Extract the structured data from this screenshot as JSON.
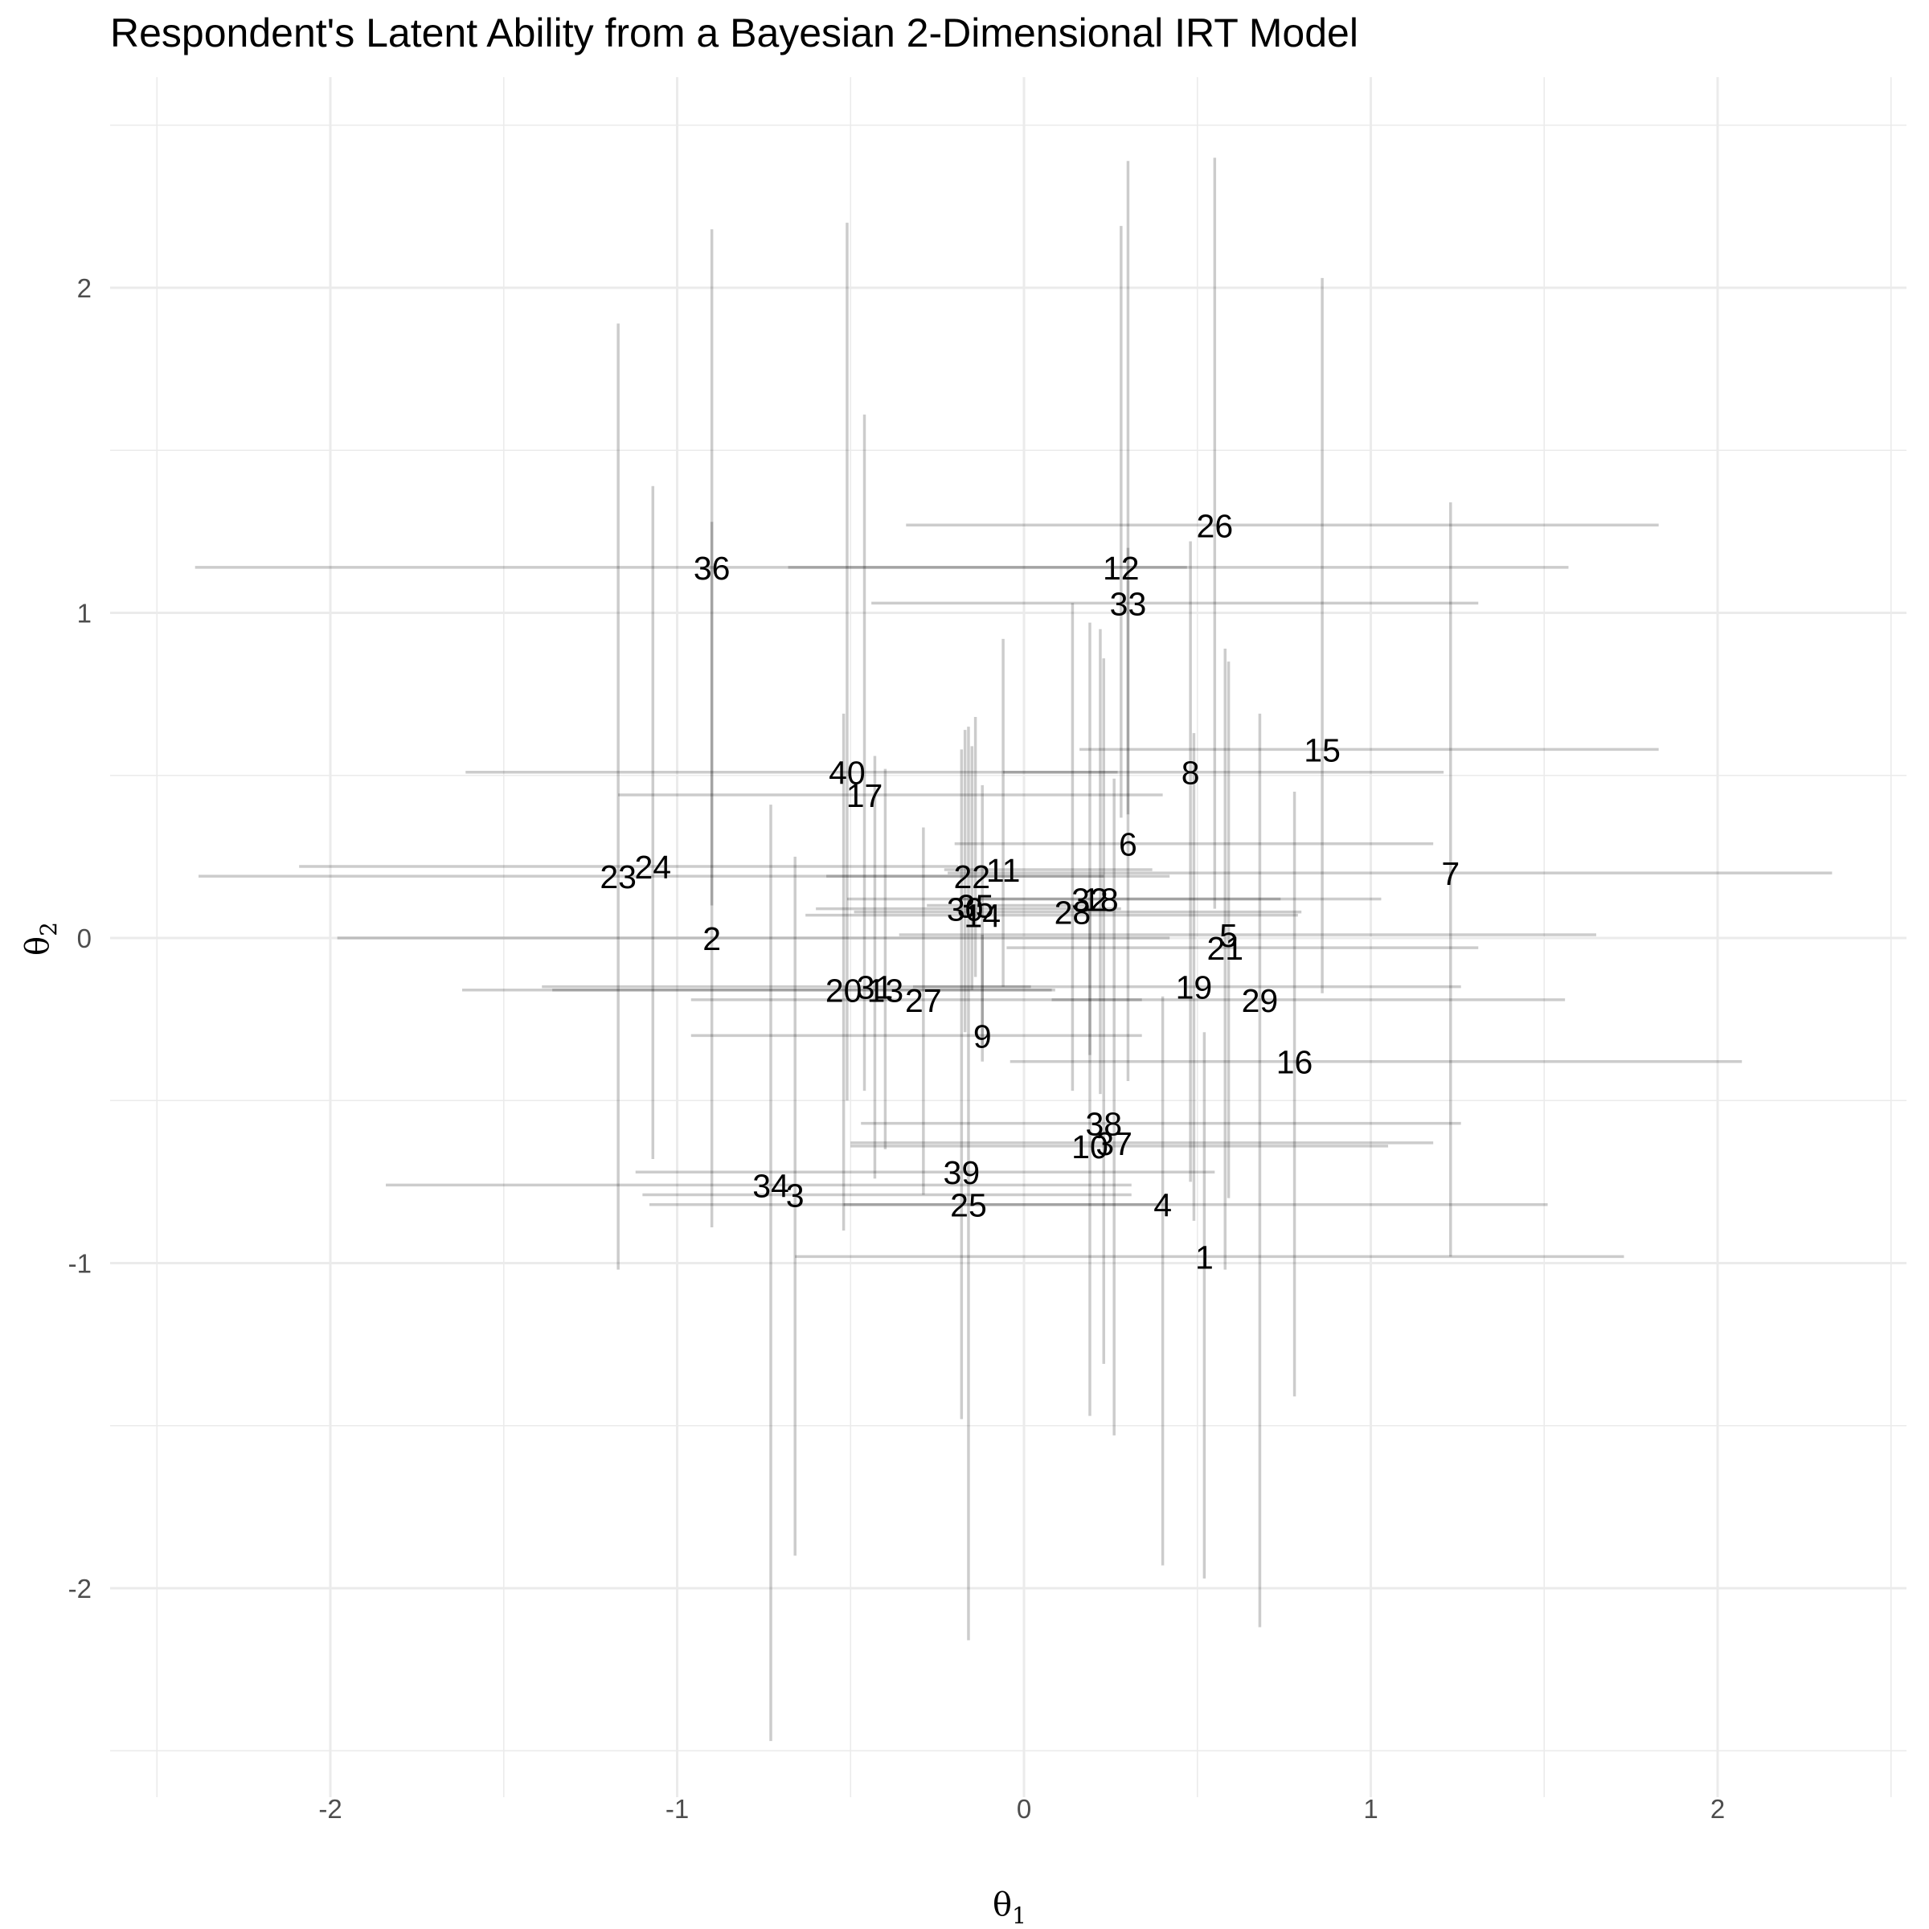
{
  "chart_data": {
    "type": "scatter",
    "title": "Respondent's Latent Ability from a Bayesian 2-Dimensional IRT Model",
    "xlabel": "θ",
    "xlabel_sub": "1",
    "ylabel": "θ",
    "ylabel_sub": "2",
    "xlim": [
      -2.62,
      2.62
    ],
    "ylim": [
      -2.7,
      2.7
    ],
    "x_ticks": [
      -2,
      -1,
      0,
      1,
      2
    ],
    "y_ticks": [
      -2,
      -1,
      0,
      1,
      2
    ],
    "grid": true,
    "error_bar_color": "#000000",
    "points": [
      {
        "id": "1",
        "x": 0.52,
        "y": -0.98,
        "x_lo": -0.66,
        "x_hi": 1.73,
        "y_lo": -1.97,
        "y_hi": -0.29
      },
      {
        "id": "2",
        "x": -0.9,
        "y": 0.0,
        "x_lo": -1.98,
        "x_hi": 0.42,
        "y_lo": -0.89,
        "y_hi": 1.28
      },
      {
        "id": "3",
        "x": -0.66,
        "y": -0.79,
        "x_lo": -1.1,
        "x_hi": 0.31,
        "y_lo": -1.9,
        "y_hi": 0.25
      },
      {
        "id": "4",
        "x": 0.4,
        "y": -0.82,
        "x_lo": -0.52,
        "x_hi": 1.51,
        "y_lo": -1.93,
        "y_hi": -0.18
      },
      {
        "id": "5",
        "x": 0.59,
        "y": 0.01,
        "x_lo": -0.36,
        "x_hi": 1.65,
        "y_lo": -0.8,
        "y_hi": 0.85
      },
      {
        "id": "6",
        "x": 0.3,
        "y": 0.29,
        "x_lo": -0.2,
        "x_hi": 1.18,
        "y_lo": -0.44,
        "y_hi": 1.2
      },
      {
        "id": "7",
        "x": 1.23,
        "y": 0.2,
        "x_lo": -0.22,
        "x_hi": 2.33,
        "y_lo": -0.98,
        "y_hi": 1.34
      },
      {
        "id": "8",
        "x": 0.48,
        "y": 0.51,
        "x_lo": -0.06,
        "x_hi": 1.21,
        "y_lo": -0.75,
        "y_hi": 1.22
      },
      {
        "id": "9",
        "x": -0.12,
        "y": -0.3,
        "x_lo": -0.96,
        "x_hi": 0.34,
        "y_lo": -0.38,
        "y_hi": 0.01
      },
      {
        "id": "10",
        "x": 0.19,
        "y": -0.64,
        "x_lo": -0.5,
        "x_hi": 1.05,
        "y_lo": -1.47,
        "y_hi": 0.08
      },
      {
        "id": "11",
        "x": -0.06,
        "y": 0.21,
        "x_lo": -0.23,
        "x_hi": 0.37,
        "y_lo": -0.15,
        "y_hi": 0.92
      },
      {
        "id": "12",
        "x": 0.28,
        "y": 1.14,
        "x_lo": -0.68,
        "x_hi": 1.57,
        "y_lo": 0.37,
        "y_hi": 2.19
      },
      {
        "id": "13",
        "x": -0.4,
        "y": -0.16,
        "x_lo": -1.36,
        "x_hi": 0.09,
        "y_lo": -0.65,
        "y_hi": 0.52
      },
      {
        "id": "14",
        "x": -0.12,
        "y": 0.07,
        "x_lo": -0.63,
        "x_hi": 0.79,
        "y_lo": -0.33,
        "y_hi": 0.47
      },
      {
        "id": "15",
        "x": 0.86,
        "y": 0.58,
        "x_lo": 0.16,
        "x_hi": 1.83,
        "y_lo": -0.17,
        "y_hi": 2.03
      },
      {
        "id": "16",
        "x": 0.78,
        "y": -0.38,
        "x_lo": -0.04,
        "x_hi": 2.07,
        "y_lo": -1.41,
        "y_hi": 0.45
      },
      {
        "id": "17",
        "x": -0.46,
        "y": 0.44,
        "x_lo": -1.17,
        "x_hi": 0.4,
        "y_lo": -0.47,
        "y_hi": 1.61
      },
      {
        "id": "18",
        "x": 0.22,
        "y": 0.12,
        "x_lo": -0.51,
        "x_hi": 1.03,
        "y_lo": -0.48,
        "y_hi": 0.95
      },
      {
        "id": "19",
        "x": 0.49,
        "y": -0.15,
        "x_lo": -0.32,
        "x_hi": 1.26,
        "y_lo": -0.87,
        "y_hi": 0.63
      },
      {
        "id": "20",
        "x": -0.52,
        "y": -0.16,
        "x_lo": -1.62,
        "x_hi": 0.08,
        "y_lo": -0.9,
        "y_hi": 0.69
      },
      {
        "id": "21",
        "x": 0.58,
        "y": -0.03,
        "x_lo": -0.05,
        "x_hi": 1.31,
        "y_lo": -1.02,
        "y_hi": 0.89
      },
      {
        "id": "22",
        "x": -0.15,
        "y": 0.19,
        "x_lo": -0.57,
        "x_hi": 0.23,
        "y_lo": -0.16,
        "y_hi": 0.59
      },
      {
        "id": "23",
        "x": -1.17,
        "y": 0.19,
        "x_lo": -2.38,
        "x_hi": 0.42,
        "y_lo": -1.02,
        "y_hi": 1.89
      },
      {
        "id": "24",
        "x": -1.07,
        "y": 0.22,
        "x_lo": -2.09,
        "x_hi": -0.19,
        "y_lo": -0.68,
        "y_hi": 1.39
      },
      {
        "id": "25",
        "x": -0.16,
        "y": -0.82,
        "x_lo": -1.08,
        "x_hi": 0.39,
        "y_lo": -2.16,
        "y_hi": 0.65
      },
      {
        "id": "26",
        "x": 0.55,
        "y": 1.27,
        "x_lo": -0.34,
        "x_hi": 1.83,
        "y_lo": 0.09,
        "y_hi": 2.4
      },
      {
        "id": "27",
        "x": -0.29,
        "y": -0.19,
        "x_lo": -0.96,
        "x_hi": 0.34,
        "y_lo": -0.79,
        "y_hi": 0.34
      },
      {
        "id": "28",
        "x": 0.14,
        "y": 0.08,
        "x_lo": -0.49,
        "x_hi": 0.8,
        "y_lo": -0.47,
        "y_hi": 1.03
      },
      {
        "id": "29",
        "x": 0.68,
        "y": -0.19,
        "x_lo": 0.08,
        "x_hi": 1.56,
        "y_lo": -2.12,
        "y_hi": 0.69
      },
      {
        "id": "30",
        "x": -0.17,
        "y": 0.09,
        "x_lo": -0.6,
        "x_hi": 0.28,
        "y_lo": -0.29,
        "y_hi": 0.64
      },
      {
        "id": "31",
        "x": -0.43,
        "y": -0.15,
        "x_lo": -1.39,
        "x_hi": 0.02,
        "y_lo": -0.74,
        "y_hi": 0.56
      },
      {
        "id": "32",
        "x": 0.19,
        "y": 0.12,
        "x_lo": -0.21,
        "x_hi": 0.74,
        "y_lo": -0.36,
        "y_hi": 0.97
      },
      {
        "id": "33",
        "x": 0.3,
        "y": 1.03,
        "x_lo": -0.44,
        "x_hi": 1.31,
        "y_lo": 0.38,
        "y_hi": 2.39
      },
      {
        "id": "34",
        "x": -0.73,
        "y": -0.76,
        "x_lo": -1.84,
        "x_hi": 0.31,
        "y_lo": -2.47,
        "y_hi": 0.41
      },
      {
        "id": "35",
        "x": -0.14,
        "y": 0.1,
        "x_lo": -0.28,
        "x_hi": 0.18,
        "y_lo": -0.12,
        "y_hi": 0.68
      },
      {
        "id": "36",
        "x": -0.9,
        "y": 1.14,
        "x_lo": -2.39,
        "x_hi": 0.47,
        "y_lo": 0.1,
        "y_hi": 2.18
      },
      {
        "id": "37",
        "x": 0.26,
        "y": -0.63,
        "x_lo": -0.5,
        "x_hi": 1.18,
        "y_lo": -1.53,
        "y_hi": 0.49
      },
      {
        "id": "38",
        "x": 0.23,
        "y": -0.57,
        "x_lo": -0.47,
        "x_hi": 1.26,
        "y_lo": -1.31,
        "y_hi": 0.86
      },
      {
        "id": "39",
        "x": -0.18,
        "y": -0.72,
        "x_lo": -1.12,
        "x_hi": 0.55,
        "y_lo": -1.48,
        "y_hi": 0.58
      },
      {
        "id": "40",
        "x": -0.51,
        "y": 0.51,
        "x_lo": -1.61,
        "x_hi": 0.27,
        "y_lo": -0.5,
        "y_hi": 2.2
      }
    ]
  }
}
